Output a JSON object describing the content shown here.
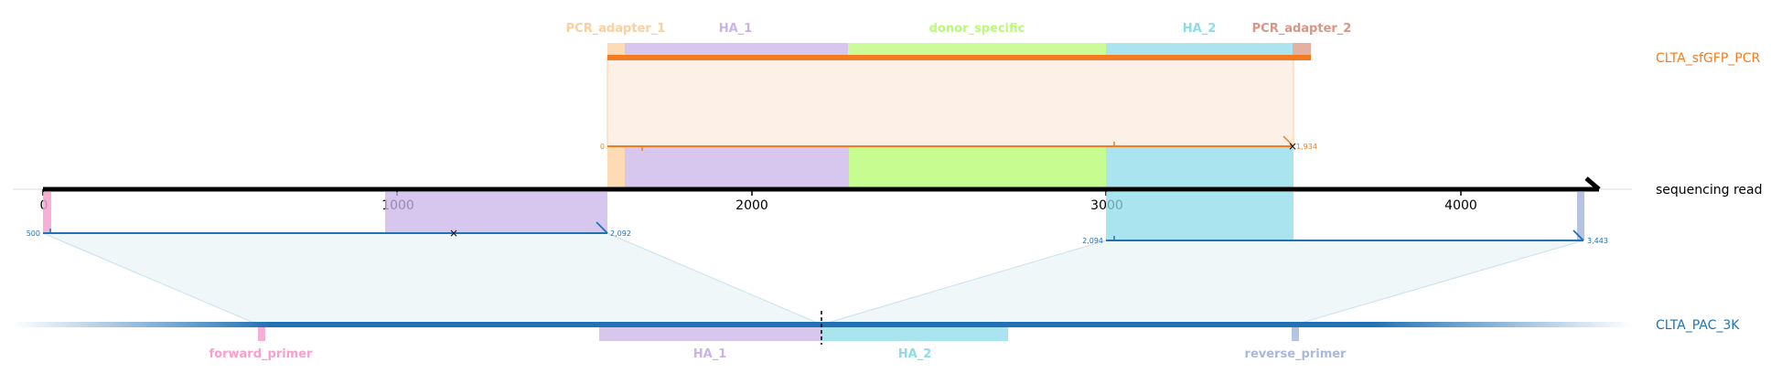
{
  "axis": {
    "ticks": [
      "0",
      "1000",
      "2000",
      "3000",
      "4000"
    ],
    "label": "sequencing read"
  },
  "top_target": {
    "name": "CLTA_sfGFP_PCR",
    "features": [
      {
        "label": "PCR_adapter_1",
        "color": "#fbcf9c"
      },
      {
        "label": "HA_1",
        "color": "#c9b3e8"
      },
      {
        "label": "donor_specific",
        "color": "#b9fb74"
      },
      {
        "label": "HA_2",
        "color": "#8ddbe8"
      },
      {
        "label": "PCR_adapter_2",
        "color": "#d99585"
      }
    ],
    "alignment": {
      "start_label": "0",
      "end_label": "1,934",
      "color": "#f47b20"
    }
  },
  "bottom_target": {
    "name": "CLTA_PAC_3K",
    "features": [
      {
        "label": "forward_primer",
        "color": "#f7a0cf"
      },
      {
        "label": "HA_1",
        "color": "#c9b3e8"
      },
      {
        "label": "HA_2",
        "color": "#8ddbe8"
      },
      {
        "label": "reverse_primer",
        "color": "#a9b8dc"
      }
    ],
    "alignments": [
      {
        "start_label": "500",
        "end_label": "2,092"
      },
      {
        "start_label": "2,094",
        "end_label": "3,443"
      }
    ],
    "color": "#2172b4"
  },
  "colors": {
    "axis": "#000000",
    "top_band_fill": "#fdf0e6",
    "bottom_band_fill": "#e4f1f4"
  }
}
